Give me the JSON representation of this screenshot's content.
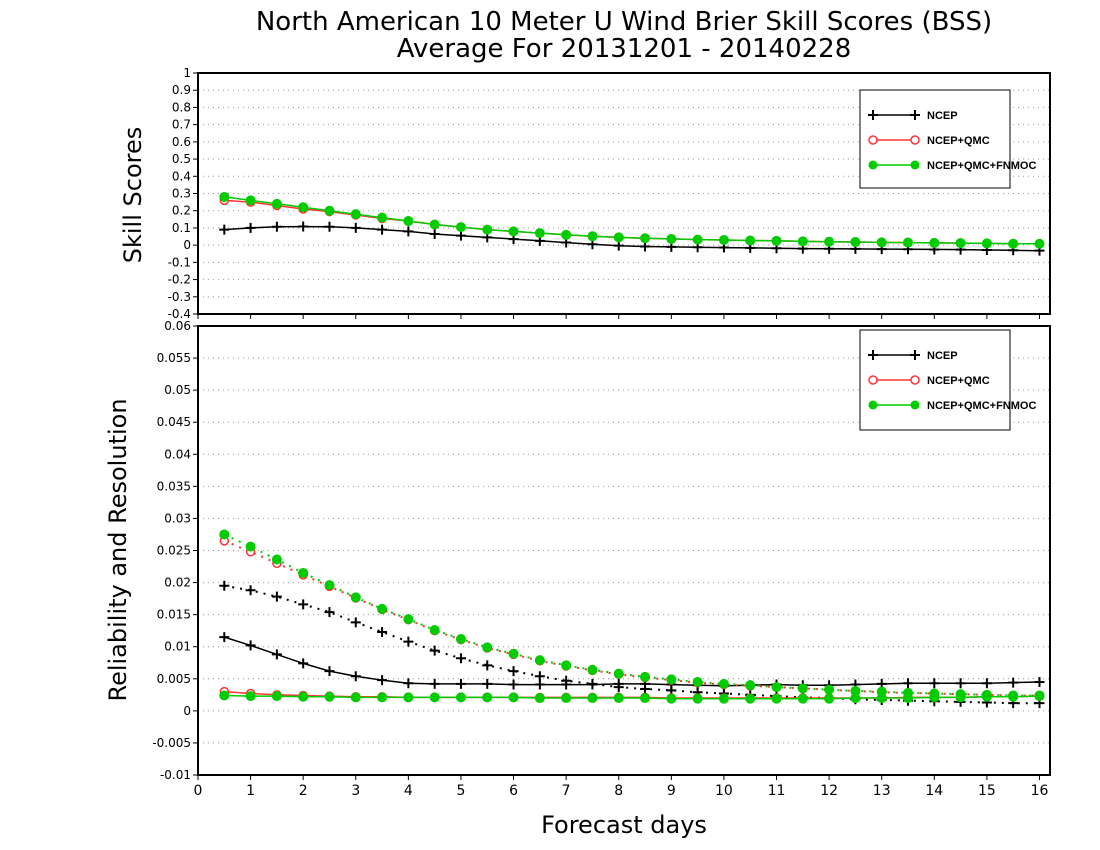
{
  "chart_data": {
    "title_line1": "North American 10 Meter U Wind Brier Skill Scores (BSS)",
    "title_line2": "Average For 20131201 - 20140228",
    "xlabel": "Forecast days",
    "x_ticks": [
      "0",
      "1",
      "2",
      "3",
      "4",
      "5",
      "6",
      "7",
      "8",
      "9",
      "10",
      "11",
      "12",
      "13",
      "14",
      "15",
      "16"
    ],
    "xlim": [
      0,
      16.2
    ],
    "x": [
      0.5,
      1,
      1.5,
      2,
      2.5,
      3,
      3.5,
      4,
      4.5,
      5,
      5.5,
      6,
      6.5,
      7,
      7.5,
      8,
      8.5,
      9,
      9.5,
      10,
      10.5,
      11,
      11.5,
      12,
      12.5,
      13,
      13.5,
      14,
      14.5,
      15,
      15.5,
      16
    ],
    "colors": {
      "ncep": "#000000",
      "qmc": "#ff3333",
      "fnmoc": "#00cc00",
      "grid": "#999999"
    },
    "panels": [
      {
        "type": "line",
        "ylabel": "Skill Scores",
        "ylim": [
          -0.4,
          1
        ],
        "y_ticks": [
          "1",
          "0.9",
          "0.8",
          "0.7",
          "0.6",
          "0.5",
          "0.4",
          "0.3",
          "0.2",
          "0.1",
          "0",
          "-0.1",
          "-0.2",
          "-0.3",
          "-0.4"
        ],
        "grid": true,
        "legend": {
          "position": "top-right",
          "items": [
            "NCEP",
            "NCEP+QMC",
            "NCEP+QMC+FNMOC"
          ]
        },
        "series": [
          {
            "name": "NCEP",
            "style": "solid",
            "marker": "plus",
            "color": "#000000",
            "values": [
              0.09,
              0.1,
              0.107,
              0.108,
              0.107,
              0.1,
              0.09,
              0.08,
              0.065,
              0.055,
              0.045,
              0.035,
              0.025,
              0.015,
              0.005,
              -0.003,
              -0.008,
              -0.01,
              -0.012,
              -0.014,
              -0.016,
              -0.018,
              -0.02,
              -0.021,
              -0.022,
              -0.023,
              -0.024,
              -0.025,
              -0.026,
              -0.028,
              -0.03,
              -0.032
            ]
          },
          {
            "name": "NCEP+QMC",
            "style": "solid",
            "marker": "open-circle",
            "color": "#ff3333",
            "values": [
              0.26,
              0.25,
              0.23,
              0.21,
              0.195,
              0.175,
              0.155,
              0.14,
              0.12,
              0.105,
              0.09,
              0.08,
              0.07,
              0.06,
              0.052,
              0.045,
              0.04,
              0.036,
              0.032,
              0.03,
              0.027,
              0.025,
              0.022,
              0.02,
              0.018,
              0.016,
              0.015,
              0.013,
              0.012,
              0.01,
              0.008,
              0.008
            ]
          },
          {
            "name": "NCEP+QMC+FNMOC",
            "style": "solid",
            "marker": "filled-circle",
            "color": "#00cc00",
            "values": [
              0.28,
              0.26,
              0.24,
              0.22,
              0.2,
              0.18,
              0.16,
              0.14,
              0.12,
              0.105,
              0.09,
              0.08,
              0.07,
              0.06,
              0.052,
              0.045,
              0.04,
              0.036,
              0.032,
              0.03,
              0.027,
              0.025,
              0.022,
              0.02,
              0.018,
              0.016,
              0.015,
              0.013,
              0.012,
              0.01,
              0.008,
              0.008
            ]
          }
        ]
      },
      {
        "type": "line",
        "ylabel": "Reliability and Resolution",
        "ylim": [
          -0.01,
          0.06
        ],
        "y_ticks": [
          "0.06",
          "0.055",
          "0.05",
          "0.045",
          "0.04",
          "0.035",
          "0.03",
          "0.025",
          "0.02",
          "0.015",
          "0.01",
          "0.005",
          "0",
          "-0.005",
          "-0.01"
        ],
        "grid": true,
        "legend": {
          "position": "top-right",
          "items": [
            "NCEP",
            "NCEP+QMC",
            "NCEP+QMC+FNMOC"
          ]
        },
        "series": [
          {
            "name": "NCEP",
            "style": "solid",
            "marker": "plus",
            "color": "#000000",
            "values": [
              0.0115,
              0.0102,
              0.0088,
              0.0074,
              0.0062,
              0.0054,
              0.0048,
              0.0043,
              0.0042,
              0.0042,
              0.0042,
              0.0041,
              0.0041,
              0.0041,
              0.0041,
              0.0042,
              0.0042,
              0.0041,
              0.004,
              0.0039,
              0.004,
              0.0041,
              0.004,
              0.004,
              0.0041,
              0.0042,
              0.0043,
              0.0043,
              0.0043,
              0.0043,
              0.0044,
              0.0045
            ]
          },
          {
            "name": "NCEP (resolution)",
            "style": "dotted",
            "marker": "plus",
            "color": "#000000",
            "values": [
              0.0195,
              0.0188,
              0.0178,
              0.0166,
              0.0154,
              0.0138,
              0.0123,
              0.0108,
              0.0094,
              0.0082,
              0.0071,
              0.0062,
              0.0054,
              0.0047,
              0.0042,
              0.0037,
              0.0034,
              0.0032,
              0.0029,
              0.0027,
              0.0025,
              0.0023,
              0.0021,
              0.002,
              0.0018,
              0.0017,
              0.0016,
              0.0015,
              0.0014,
              0.0013,
              0.0012,
              0.0012
            ]
          },
          {
            "name": "NCEP+QMC",
            "style": "solid",
            "marker": "open-circle",
            "color": "#ff3333",
            "values": [
              0.003,
              0.0027,
              0.0025,
              0.0024,
              0.0023,
              0.0022,
              0.0022,
              0.0021,
              0.0021,
              0.0021,
              0.0021,
              0.0021,
              0.0021,
              0.0021,
              0.0021,
              0.0021,
              0.0021,
              0.002,
              0.002,
              0.002,
              0.002,
              0.002,
              0.002,
              0.002,
              0.002,
              0.002,
              0.0021,
              0.0021,
              0.0021,
              0.0022,
              0.0022,
              0.0023
            ]
          },
          {
            "name": "NCEP+QMC (resolution)",
            "style": "dotted",
            "marker": "open-circle",
            "color": "#ff3333",
            "values": [
              0.0265,
              0.0248,
              0.023,
              0.0212,
              0.0194,
              0.0176,
              0.0158,
              0.0142,
              0.0125,
              0.0111,
              0.0098,
              0.0088,
              0.0078,
              0.007,
              0.0063,
              0.0057,
              0.0052,
              0.0048,
              0.0044,
              0.0041,
              0.0039,
              0.0037,
              0.0035,
              0.0033,
              0.0031,
              0.0029,
              0.0028,
              0.0027,
              0.0026,
              0.0025,
              0.0024,
              0.0024
            ]
          },
          {
            "name": "NCEP+QMC+FNMOC",
            "style": "solid",
            "marker": "filled-circle",
            "color": "#00cc00",
            "values": [
              0.0024,
              0.0023,
              0.0023,
              0.0022,
              0.0022,
              0.0021,
              0.0021,
              0.0021,
              0.0021,
              0.0021,
              0.0021,
              0.0021,
              0.002,
              0.002,
              0.002,
              0.002,
              0.002,
              0.0019,
              0.0019,
              0.0019,
              0.0019,
              0.0019,
              0.0019,
              0.0019,
              0.002,
              0.002,
              0.002,
              0.0021,
              0.0021,
              0.0022,
              0.0022,
              0.0023
            ]
          },
          {
            "name": "NCEP+QMC+FNMOC (resolution)",
            "style": "dotted",
            "marker": "filled-circle",
            "color": "#00cc00",
            "values": [
              0.0275,
              0.0256,
              0.0236,
              0.0215,
              0.0196,
              0.0177,
              0.0159,
              0.0143,
              0.0126,
              0.0112,
              0.0099,
              0.0089,
              0.0079,
              0.0071,
              0.0064,
              0.0058,
              0.0053,
              0.0049,
              0.0045,
              0.0042,
              0.004,
              0.0037,
              0.0035,
              0.0033,
              0.0031,
              0.003,
              0.0028,
              0.0027,
              0.0026,
              0.0025,
              0.0024,
              0.0024
            ]
          }
        ]
      }
    ]
  }
}
